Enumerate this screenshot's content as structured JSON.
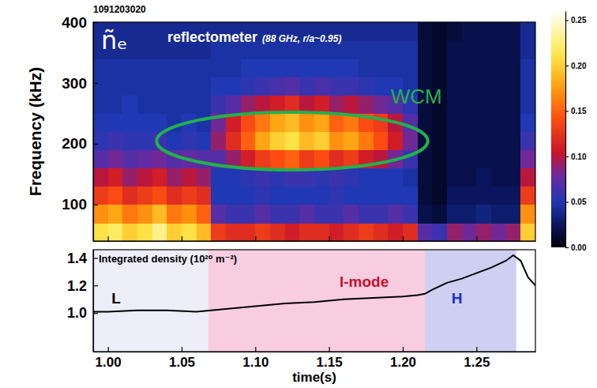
{
  "chart_data": [
    {
      "type": "heatmap",
      "title": "1091203020",
      "signal": "ñₑ",
      "subtitle": "reflectometer",
      "subtitle_note": "(88 GHz, r/a~0.95)",
      "ylabel": "Frequency (kHz)",
      "xlim": [
        0.99,
        1.29
      ],
      "xticks": [
        1,
        1.05,
        1.1,
        1.15,
        1.2,
        1.25
      ],
      "ylim": [
        40,
        400
      ],
      "yticks": [
        100,
        200,
        300,
        400
      ],
      "tick_labels": "y",
      "x_bins": [
        0.99,
        1.0,
        1.01,
        1.02,
        1.03,
        1.04,
        1.05,
        1.06,
        1.07,
        1.08,
        1.09,
        1.1,
        1.11,
        1.12,
        1.13,
        1.14,
        1.15,
        1.16,
        1.17,
        1.18,
        1.19,
        1.2,
        1.21,
        1.22,
        1.23,
        1.24,
        1.25,
        1.26,
        1.27,
        1.28,
        1.29
      ],
      "y_bins": [
        40,
        70,
        100,
        130,
        160,
        190,
        220,
        250,
        280,
        310,
        340,
        370,
        400
      ],
      "z": [
        [
          0.21,
          0.22,
          0.2,
          0.21,
          0.23,
          0.2,
          0.21,
          0.19,
          0.13,
          0.12,
          0.12,
          0.13,
          0.12,
          0.11,
          0.12,
          0.12,
          0.11,
          0.12,
          0.13,
          0.12,
          0.11,
          0.12,
          0.07,
          0.06,
          0.09,
          0.08,
          0.09,
          0.08,
          0.09,
          0.2
        ],
        [
          0.17,
          0.18,
          0.16,
          0.17,
          0.19,
          0.16,
          0.17,
          0.15,
          0.07,
          0.06,
          0.06,
          0.07,
          0.06,
          0.06,
          0.07,
          0.06,
          0.06,
          0.07,
          0.06,
          0.06,
          0.07,
          0.06,
          0.02,
          0.015,
          0.03,
          0.03,
          0.035,
          0.03,
          0.03,
          0.17
        ],
        [
          0.13,
          0.14,
          0.12,
          0.13,
          0.14,
          0.12,
          0.13,
          0.12,
          0.05,
          0.05,
          0.05,
          0.055,
          0.05,
          0.05,
          0.05,
          0.05,
          0.055,
          0.05,
          0.05,
          0.05,
          0.05,
          0.05,
          0.015,
          0.01,
          0.025,
          0.025,
          0.025,
          0.025,
          0.025,
          0.13
        ],
        [
          0.1,
          0.11,
          0.09,
          0.1,
          0.11,
          0.09,
          0.1,
          0.09,
          0.05,
          0.05,
          0.055,
          0.06,
          0.055,
          0.06,
          0.06,
          0.055,
          0.06,
          0.055,
          0.05,
          0.05,
          0.05,
          0.045,
          0.015,
          0.01,
          0.02,
          0.02,
          0.025,
          0.02,
          0.02,
          0.1
        ],
        [
          0.07,
          0.08,
          0.07,
          0.075,
          0.08,
          0.07,
          0.075,
          0.07,
          0.07,
          0.09,
          0.11,
          0.13,
          0.14,
          0.15,
          0.13,
          0.14,
          0.12,
          0.13,
          0.11,
          0.1,
          0.08,
          0.06,
          0.015,
          0.01,
          0.02,
          0.02,
          0.02,
          0.02,
          0.02,
          0.08
        ],
        [
          0.055,
          0.06,
          0.055,
          0.055,
          0.06,
          0.05,
          0.055,
          0.05,
          0.09,
          0.12,
          0.15,
          0.18,
          0.2,
          0.21,
          0.19,
          0.2,
          0.17,
          0.18,
          0.16,
          0.14,
          0.11,
          0.08,
          0.015,
          0.01,
          0.02,
          0.02,
          0.02,
          0.02,
          0.02,
          0.06
        ],
        [
          0.05,
          0.05,
          0.05,
          0.05,
          0.05,
          0.045,
          0.05,
          0.045,
          0.08,
          0.11,
          0.14,
          0.16,
          0.18,
          0.19,
          0.17,
          0.18,
          0.15,
          0.16,
          0.14,
          0.13,
          0.1,
          0.07,
          0.015,
          0.01,
          0.02,
          0.02,
          0.02,
          0.02,
          0.02,
          0.05
        ],
        [
          0.045,
          0.045,
          0.05,
          0.045,
          0.045,
          0.045,
          0.045,
          0.045,
          0.06,
          0.07,
          0.09,
          0.1,
          0.11,
          0.12,
          0.1,
          0.11,
          0.09,
          0.1,
          0.09,
          0.08,
          0.07,
          0.055,
          0.015,
          0.01,
          0.02,
          0.02,
          0.02,
          0.02,
          0.02,
          0.045
        ],
        [
          0.045,
          0.045,
          0.045,
          0.045,
          0.045,
          0.045,
          0.045,
          0.045,
          0.05,
          0.05,
          0.055,
          0.06,
          0.065,
          0.07,
          0.06,
          0.065,
          0.06,
          0.06,
          0.055,
          0.05,
          0.05,
          0.045,
          0.015,
          0.01,
          0.02,
          0.02,
          0.02,
          0.02,
          0.02,
          0.045
        ],
        [
          0.045,
          0.045,
          0.045,
          0.045,
          0.045,
          0.045,
          0.045,
          0.045,
          0.045,
          0.045,
          0.05,
          0.05,
          0.05,
          0.05,
          0.05,
          0.05,
          0.05,
          0.05,
          0.045,
          0.045,
          0.045,
          0.045,
          0.015,
          0.01,
          0.02,
          0.02,
          0.02,
          0.02,
          0.02,
          0.045
        ],
        [
          0.04,
          0.04,
          0.04,
          0.04,
          0.04,
          0.04,
          0.04,
          0.04,
          0.045,
          0.045,
          0.045,
          0.045,
          0.045,
          0.045,
          0.045,
          0.045,
          0.045,
          0.045,
          0.045,
          0.045,
          0.045,
          0.045,
          0.015,
          0.01,
          0.02,
          0.02,
          0.02,
          0.02,
          0.02,
          0.04
        ],
        [
          0.04,
          0.04,
          0.04,
          0.04,
          0.04,
          0.04,
          0.04,
          0.04,
          0.04,
          0.04,
          0.04,
          0.04,
          0.04,
          0.04,
          0.04,
          0.04,
          0.04,
          0.04,
          0.04,
          0.04,
          0.04,
          0.04,
          0.015,
          0.01,
          0.015,
          0.02,
          0.02,
          0.02,
          0.02,
          0.04
        ]
      ],
      "colorbar": {
        "zlim": [
          0,
          0.26
        ],
        "ticks": [
          {
            "value": 0,
            "label": "0.00"
          },
          {
            "value": 0.05,
            "label": "0.05"
          },
          {
            "value": 0.1,
            "label": "0.10"
          },
          {
            "value": 0.15,
            "label": "0.15"
          },
          {
            "value": 0.2,
            "label": "0.20"
          },
          {
            "value": 0.25,
            "label": "0.25"
          }
        ]
      },
      "ellipse": {
        "x": [
          1.033,
          1.217
        ],
        "y": [
          157,
          252
        ],
        "color": "#22b14c",
        "label": "WCM"
      }
    },
    {
      "type": "line",
      "ylabel": "Integrated density (10²⁰ m⁻²)",
      "xlabel": "time(s)",
      "xlim": [
        0.99,
        1.29
      ],
      "xticks": [
        {
          "value": 1,
          "label": "1.00"
        },
        1.05,
        {
          "value": 1.1,
          "label": "1.10"
        },
        1.15,
        {
          "value": 1.2,
          "label": "1.20"
        },
        1.25
      ],
      "ylim": [
        0.72,
        1.46
      ],
      "yticks": [
        {
          "value": 1,
          "label": "1.0"
        },
        1.2,
        1.4
      ],
      "color": "#000000",
      "x": [
        0.99,
        1.0,
        1.02,
        1.04,
        1.06,
        1.07,
        1.08,
        1.1,
        1.12,
        1.14,
        1.16,
        1.18,
        1.2,
        1.21,
        1.215,
        1.22,
        1.23,
        1.24,
        1.25,
        1.26,
        1.27,
        1.275,
        1.28,
        1.285,
        1.29
      ],
      "values": [
        1.01,
        1.01,
        1.02,
        1.02,
        1.01,
        1.02,
        1.03,
        1.05,
        1.07,
        1.08,
        1.1,
        1.11,
        1.12,
        1.13,
        1.14,
        1.17,
        1.22,
        1.25,
        1.29,
        1.33,
        1.38,
        1.42,
        1.38,
        1.26,
        1.2
      ],
      "regions": [
        {
          "label": "L",
          "x": [
            0.99,
            1.068
          ],
          "color": "#eeeef8"
        },
        {
          "label": "I-mode",
          "x": [
            1.068,
            1.215
          ],
          "color": "#f9cde0"
        },
        {
          "label": "H",
          "x": [
            1.215,
            1.277
          ],
          "color": "#cfcff2"
        }
      ]
    }
  ]
}
